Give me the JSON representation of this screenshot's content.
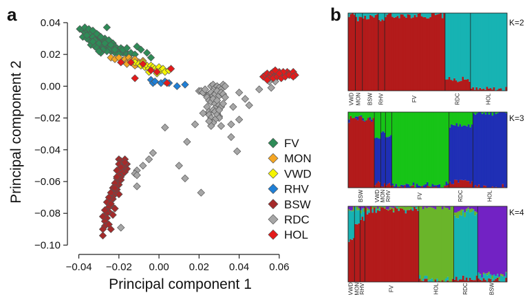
{
  "panel_a_label": "a",
  "panel_b_label": "b",
  "chart_data": [
    {
      "type": "scatter",
      "xlabel": "Principal component 1",
      "ylabel": "Principal component 2",
      "xlim": [
        -0.045,
        0.07
      ],
      "ylim": [
        -0.105,
        0.043
      ],
      "x_ticks": [
        -0.04,
        -0.02,
        0.0,
        0.02,
        0.04,
        0.06
      ],
      "x_tick_labels": [
        "−0.04",
        "−0.02",
        "0.00",
        "0.02",
        "0.04",
        "0.06"
      ],
      "y_ticks": [
        0.04,
        0.02,
        0.0,
        -0.02,
        -0.04,
        -0.06,
        -0.08,
        -0.1
      ],
      "y_tick_labels": [
        "0.04",
        "0.02",
        "0.00",
        "−0.02",
        "−0.04",
        "−0.06",
        "−0.08",
        "−0.10"
      ],
      "grid": false,
      "legend_position": "bottom-right",
      "marker": "diamond",
      "series": [
        {
          "name": "FV",
          "color": "#2e8b57",
          "x": [
            -0.0395,
            -0.038,
            -0.037,
            -0.036,
            -0.035,
            -0.034,
            -0.033,
            -0.032,
            -0.031,
            -0.03,
            -0.029,
            -0.028,
            -0.027,
            -0.026,
            -0.025,
            -0.024,
            -0.023,
            -0.022,
            -0.021,
            -0.02,
            -0.019,
            -0.018,
            -0.017,
            -0.016,
            -0.015,
            -0.038,
            -0.036,
            -0.034,
            -0.032,
            -0.03,
            -0.028,
            -0.026,
            -0.024,
            -0.022,
            -0.02,
            -0.035,
            -0.033,
            -0.031,
            -0.029,
            -0.027,
            -0.025,
            -0.023,
            -0.037,
            -0.035,
            -0.033,
            -0.031,
            -0.029,
            -0.027,
            -0.025,
            -0.034,
            -0.032,
            -0.03,
            -0.028,
            -0.026,
            -0.024,
            -0.022,
            -0.036,
            -0.032,
            -0.028,
            -0.031,
            -0.029,
            -0.027,
            -0.033,
            -0.018,
            -0.016,
            -0.014,
            -0.012,
            -0.011,
            -0.009,
            -0.006,
            -0.004,
            -0.012,
            -0.03,
            -0.026,
            -0.024
          ],
          "y": [
            0.036,
            0.035,
            0.034,
            0.035,
            0.033,
            0.032,
            0.034,
            0.031,
            0.03,
            0.032,
            0.03,
            0.029,
            0.03,
            0.027,
            0.028,
            0.026,
            0.027,
            0.025,
            0.024,
            0.023,
            0.024,
            0.021,
            0.022,
            0.02,
            0.019,
            0.031,
            0.03,
            0.028,
            0.027,
            0.026,
            0.025,
            0.023,
            0.022,
            0.021,
            0.02,
            0.033,
            0.031,
            0.028,
            0.026,
            0.025,
            0.024,
            0.023,
            0.037,
            0.036,
            0.035,
            0.033,
            0.031,
            0.028,
            0.029,
            0.026,
            0.029,
            0.027,
            0.024,
            0.022,
            0.024,
            0.023,
            0.032,
            0.025,
            0.023,
            0.024,
            0.021,
            0.027,
            0.028,
            0.023,
            0.024,
            0.021,
            0.02,
            0.025,
            0.023,
            0.021,
            0.018,
            0.016,
            0.022,
            0.037,
            0.026
          ]
        },
        {
          "name": "MON",
          "color": "#f5a623",
          "x": [
            -0.024,
            -0.022,
            -0.02,
            -0.018,
            -0.017,
            -0.016,
            -0.015,
            -0.014,
            -0.013,
            -0.012,
            -0.011,
            -0.01,
            -0.009,
            -0.008,
            -0.016,
            -0.012
          ],
          "y": [
            0.018,
            0.017,
            0.018,
            0.016,
            0.017,
            0.015,
            0.018,
            0.016,
            0.015,
            0.017,
            0.014,
            0.015,
            0.013,
            0.016,
            0.014,
            0.013
          ]
        },
        {
          "name": "VWD",
          "color": "#f5f500",
          "x": [
            -0.012,
            -0.01,
            -0.009,
            -0.008,
            -0.007,
            -0.006,
            -0.005,
            -0.004,
            -0.003,
            -0.002,
            -0.001,
            0.0,
            0.001,
            0.002,
            0.003,
            0.005,
            -0.005,
            -0.001
          ],
          "y": [
            0.015,
            0.014,
            0.013,
            0.015,
            0.012,
            0.013,
            0.011,
            0.013,
            0.012,
            0.011,
            0.01,
            0.012,
            0.01,
            0.011,
            0.009,
            0.01,
            0.009,
            0.008
          ]
        },
        {
          "name": "RHV",
          "color": "#1f7fd6",
          "x": [
            -0.004,
            -0.003,
            -0.002,
            0.001,
            0.003,
            0.005,
            0.013,
            0.009
          ],
          "y": [
            0.004,
            0.002,
            0.003,
            0.002,
            0.003,
            0.002,
            0.001,
            0.0
          ]
        },
        {
          "name": "BSW",
          "color": "#a52a2a",
          "x": [
            -0.02,
            -0.019,
            -0.018,
            -0.017,
            -0.016,
            -0.016,
            -0.017,
            -0.018,
            -0.017,
            -0.018,
            -0.019,
            -0.019,
            -0.02,
            -0.019,
            -0.02,
            -0.021,
            -0.02,
            -0.021,
            -0.022,
            -0.021,
            -0.022,
            -0.023,
            -0.022,
            -0.023,
            -0.024,
            -0.023,
            -0.024,
            -0.025,
            -0.024,
            -0.025,
            -0.026,
            -0.025,
            -0.026,
            -0.027,
            -0.026,
            -0.027,
            -0.028,
            -0.027,
            -0.028,
            -0.028,
            -0.02,
            -0.021,
            -0.022,
            -0.019,
            -0.024,
            -0.023,
            -0.025,
            -0.022,
            -0.02,
            -0.017,
            -0.021,
            -0.024
          ],
          "y": [
            -0.046,
            -0.047,
            -0.048,
            -0.046,
            -0.049,
            -0.052,
            -0.05,
            -0.051,
            -0.054,
            -0.055,
            -0.053,
            -0.057,
            -0.056,
            -0.059,
            -0.06,
            -0.058,
            -0.062,
            -0.063,
            -0.061,
            -0.065,
            -0.066,
            -0.064,
            -0.068,
            -0.069,
            -0.067,
            -0.071,
            -0.072,
            -0.07,
            -0.075,
            -0.076,
            -0.073,
            -0.079,
            -0.08,
            -0.078,
            -0.083,
            -0.085,
            -0.082,
            -0.088,
            -0.09,
            -0.094,
            -0.049,
            -0.057,
            -0.064,
            -0.051,
            -0.074,
            -0.081,
            -0.087,
            -0.077,
            -0.068,
            -0.048,
            -0.053,
            -0.09
          ]
        },
        {
          "name": "RDC",
          "color": "#a6a6a6",
          "x": [
            0.026,
            0.027,
            0.028,
            0.029,
            0.03,
            0.031,
            0.032,
            0.033,
            0.02,
            0.021,
            0.022,
            0.023,
            0.024,
            0.025,
            0.026,
            0.027,
            0.028,
            0.029,
            0.03,
            0.031,
            0.032,
            0.033,
            0.024,
            0.025,
            0.026,
            0.027,
            0.028,
            0.029,
            0.03,
            0.031,
            0.032,
            0.028,
            0.029,
            0.03,
            0.024,
            0.025,
            0.027,
            0.028,
            0.029,
            0.03,
            0.025,
            0.026,
            0.028,
            0.027,
            0.026,
            0.025,
            0.04,
            0.043,
            0.045,
            0.05,
            0.055,
            0.056,
            0.058,
            0.036,
            0.03,
            0.037,
            0.022,
            0.031,
            0.036,
            0.039,
            0.04,
            0.018,
            0.003,
            0.014,
            -0.003,
            -0.005,
            -0.008,
            -0.011,
            -0.012,
            -0.011,
            -0.011,
            0.021,
            0.01,
            0.013,
            -0.019
          ],
          "y": [
            0.0,
            0.001,
            -0.001,
            0.0,
            -0.001,
            -0.002,
            0.001,
            0.0,
            -0.003,
            -0.003,
            -0.004,
            -0.002,
            -0.006,
            -0.005,
            -0.004,
            -0.006,
            -0.005,
            -0.003,
            -0.006,
            -0.004,
            -0.005,
            -0.007,
            -0.007,
            -0.009,
            -0.01,
            -0.008,
            -0.011,
            -0.009,
            -0.012,
            -0.013,
            -0.011,
            -0.014,
            -0.017,
            -0.019,
            -0.013,
            -0.016,
            -0.015,
            -0.016,
            -0.018,
            -0.02,
            -0.018,
            -0.02,
            -0.021,
            -0.023,
            -0.025,
            -0.022,
            -0.004,
            -0.008,
            -0.012,
            -0.002,
            0.003,
            -0.001,
            0.003,
            -0.024,
            -0.015,
            -0.013,
            -0.017,
            -0.025,
            -0.032,
            -0.041,
            -0.021,
            -0.024,
            -0.026,
            -0.035,
            -0.042,
            -0.046,
            -0.05,
            -0.053,
            -0.055,
            -0.056,
            -0.063,
            -0.067,
            -0.05,
            -0.058,
            -0.089
          ]
        },
        {
          "name": "HOL",
          "color": "#e41a1a",
          "x": [
            0.052,
            0.053,
            0.054,
            0.055,
            0.056,
            0.057,
            0.058,
            0.059,
            0.06,
            0.061,
            0.062,
            0.063,
            0.064,
            0.065,
            0.066,
            0.067,
            0.068,
            0.055,
            0.057,
            0.059,
            0.061,
            0.063,
            0.065,
            0.067,
            0.058,
            0.062,
            0.054,
            0.06,
            -0.019,
            -0.014,
            -0.012,
            -0.004,
            -0.001,
            0.006,
            0.004,
            -0.008
          ],
          "y": [
            0.006,
            0.007,
            0.008,
            0.006,
            0.008,
            0.009,
            0.007,
            0.008,
            0.009,
            0.007,
            0.008,
            0.006,
            0.009,
            0.008,
            0.007,
            0.009,
            0.007,
            0.005,
            0.005,
            0.006,
            0.005,
            0.006,
            0.007,
            0.006,
            0.01,
            0.009,
            0.004,
            0.008,
            0.015,
            0.015,
            0.005,
            0.01,
            0.009,
            0.011,
            0.002,
            0.014
          ]
        }
      ]
    },
    {
      "type": "stacked-bar",
      "label": "K=2",
      "group_labels": [
        "VWD",
        "MON",
        "BSW",
        "RHV",
        "FV",
        "RDC",
        "HOL"
      ],
      "component_colors": [
        "#b31b1b",
        "#17b3b3"
      ],
      "components": [
        {
          "name": "red",
          "proportions": [
            0.98,
            0.93,
            0.95,
            0.9,
            0.97,
            0.15,
            0.02
          ]
        },
        {
          "name": "teal",
          "proportions": [
            0.02,
            0.07,
            0.05,
            0.1,
            0.03,
            0.85,
            0.98
          ]
        }
      ]
    },
    {
      "type": "stacked-bar",
      "label": "K=3",
      "group_labels": [
        "BSW",
        "VWD",
        "MON",
        "RHV",
        "FV",
        "RDC",
        "HOL"
      ],
      "component_colors": [
        "#b31b1b",
        "#1f2fb5",
        "#17c417"
      ],
      "components": [
        {
          "name": "red",
          "proportions": [
            0.9,
            0.06,
            0.04,
            0.03,
            0.01,
            0.08,
            0.01
          ]
        },
        {
          "name": "blue",
          "proportions": [
            0.02,
            0.6,
            0.7,
            0.65,
            0.02,
            0.75,
            0.98
          ]
        },
        {
          "name": "green",
          "proportions": [
            0.08,
            0.34,
            0.26,
            0.32,
            0.97,
            0.17,
            0.01
          ]
        }
      ]
    },
    {
      "type": "stacked-bar",
      "label": "K=4",
      "group_labels": [
        "VWD",
        "MON",
        "RHV",
        "FV",
        "HOL",
        "RDC",
        "BSW"
      ],
      "component_colors": [
        "#b31b1b",
        "#17b3b3",
        "#6ab52a",
        "#7222c4"
      ],
      "components": [
        {
          "name": "red",
          "proportions": [
            0.55,
            0.75,
            0.85,
            0.96,
            0.01,
            0.05,
            0.02
          ]
        },
        {
          "name": "teal",
          "proportions": [
            0.4,
            0.2,
            0.1,
            0.02,
            0.01,
            0.85,
            0.05
          ]
        },
        {
          "name": "green",
          "proportions": [
            0.03,
            0.03,
            0.03,
            0.01,
            0.97,
            0.05,
            0.01
          ]
        },
        {
          "name": "purple",
          "proportions": [
            0.02,
            0.02,
            0.02,
            0.01,
            0.01,
            0.05,
            0.92
          ]
        }
      ]
    }
  ]
}
